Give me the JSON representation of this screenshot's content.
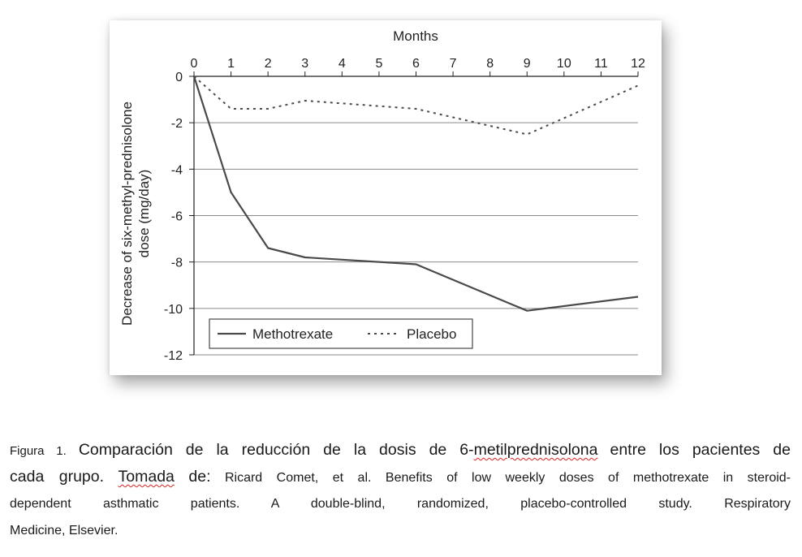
{
  "chart_data": {
    "type": "line",
    "xlabel": "Months",
    "ylabel_line1": "Decrease of six-methyl-prednisolone",
    "ylabel_line2": "dose (mg/day)",
    "x_ticks": [
      "0",
      "1",
      "2",
      "3",
      "4",
      "5",
      "6",
      "7",
      "8",
      "9",
      "10",
      "11",
      "12"
    ],
    "y_ticks": [
      "0",
      "-2",
      "-4",
      "-6",
      "-8",
      "-10",
      "-12"
    ],
    "xlim": [
      0,
      12
    ],
    "ylim": [
      -12,
      0
    ],
    "grid": "horizontal",
    "legend_position": "bottom-left",
    "series": [
      {
        "name": "Methotrexate",
        "style": "solid",
        "color": "#4a4a4a",
        "x": [
          0,
          1,
          2,
          3,
          6,
          9,
          12
        ],
        "y": [
          0,
          -5.0,
          -7.4,
          -7.8,
          -8.1,
          -10.1,
          -9.5
        ]
      },
      {
        "name": "Placebo",
        "style": "dotted",
        "color": "#4a4a4a",
        "x": [
          0,
          1,
          2,
          3,
          6,
          9,
          12
        ],
        "y": [
          0,
          -1.4,
          -1.4,
          -1.05,
          -1.4,
          -2.5,
          -0.4
        ]
      }
    ]
  },
  "caption": {
    "line1_a": "Figura 1.",
    "line1_b": "Comparación de la reducción de la dosis de 6-",
    "line1_c": "metilprednisolona",
    "line1_d": "entre los pacientes de",
    "line2_a": "cada grupo.",
    "line2_b": "Tomada",
    "line2_c": "de:",
    "line2_d": "Ricard Comet, et al. Benefits of low weekly doses of methotrexate in steroid-",
    "line3": "dependent asthmatic patients. A double-blind, randomized, placebo-controlled study. Respiratory",
    "line4": "Medicine, Elsevier."
  }
}
